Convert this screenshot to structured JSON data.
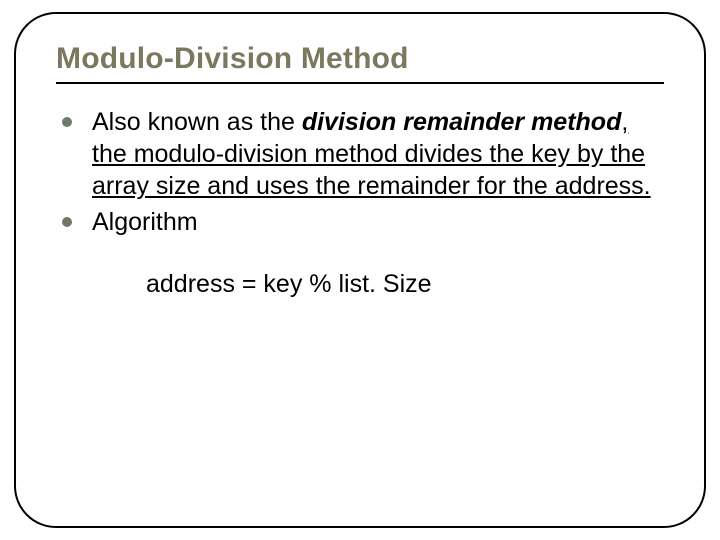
{
  "slide": {
    "title": "Modulo-Division Method",
    "title_color": "#7a795f",
    "border_color": "#000000",
    "border_radius": 42,
    "border_width": 2.5,
    "background_color": "#ffffff",
    "bullet_color": "#6f7a66",
    "text_color": "#000000",
    "title_fontsize": 30,
    "body_fontsize": 25,
    "bullets": [
      {
        "prefix": "Also known as the ",
        "emphasis": "division remainder method",
        "rest": ", the modulo-division method divides the key by the array size and uses the remainder for the address."
      },
      {
        "prefix": "Algorithm",
        "emphasis": "",
        "rest": ""
      }
    ],
    "code": "address = key % list. Size"
  }
}
